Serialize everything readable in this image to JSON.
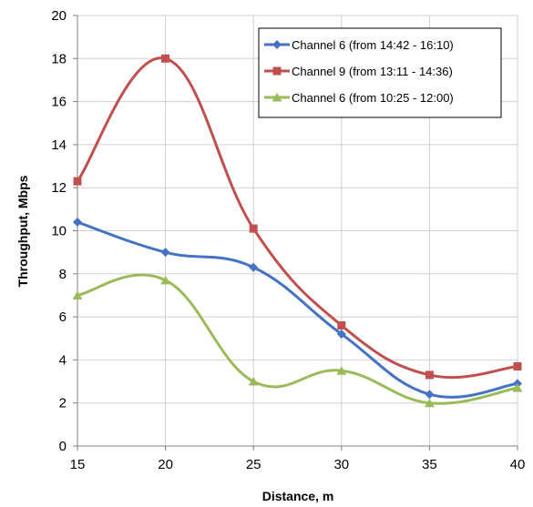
{
  "chart_data": {
    "type": "line",
    "xlabel": "Distance, m",
    "ylabel": "Throughput, Mbps",
    "xlim": [
      15,
      40
    ],
    "ylim": [
      0,
      20
    ],
    "xticks": [
      15,
      20,
      25,
      30,
      35,
      40
    ],
    "yticks": [
      0,
      2,
      4,
      6,
      8,
      10,
      12,
      14,
      16,
      18,
      20
    ],
    "grid": "both",
    "smoothed": true,
    "legend": {
      "placement": "top-right"
    },
    "x": [
      15,
      20,
      25,
      30,
      35,
      40
    ],
    "series": [
      {
        "name": "Channel 6 (from 14:42 - 16:10)",
        "color": "#4572C4",
        "marker": "diamond",
        "values": [
          10.4,
          9.0,
          8.3,
          5.2,
          2.4,
          2.9
        ]
      },
      {
        "name": "Channel 9 (from 13:11 - 14:36)",
        "color": "#C0504D",
        "marker": "square",
        "values": [
          12.3,
          18.0,
          10.1,
          5.6,
          3.3,
          3.7
        ]
      },
      {
        "name": "Channel 6 (from 10:25 - 12:00)",
        "color": "#9BBB59",
        "marker": "triangle",
        "values": [
          7.0,
          7.7,
          3.0,
          3.5,
          2.0,
          2.7
        ]
      }
    ]
  }
}
